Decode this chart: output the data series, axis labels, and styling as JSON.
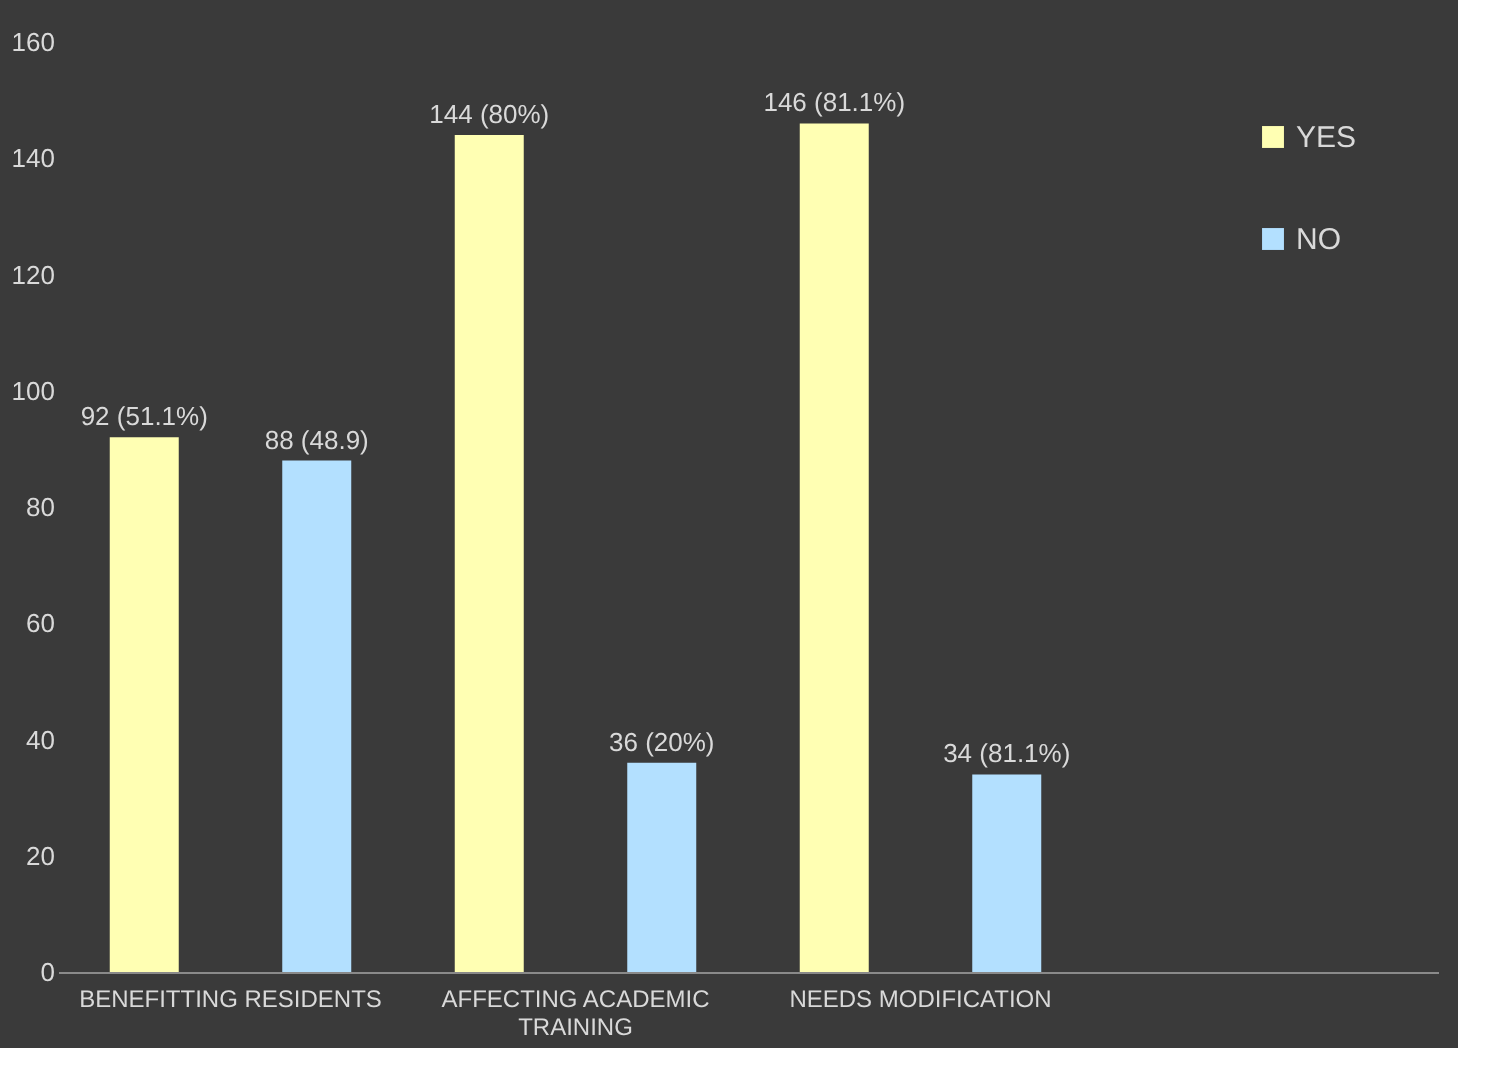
{
  "chart_data": {
    "type": "bar",
    "categories": [
      "BENEFITTING RESIDENTS",
      "AFFECTING ACADEMIC TRAINING",
      "NEEDS MODIFICATION",
      null
    ],
    "series": [
      {
        "name": "YES",
        "color": "#ffffb3",
        "values": [
          92,
          144,
          146,
          null
        ],
        "value_labels": [
          "92 (51.1%)",
          "144 (80%)",
          "146 (81.1%)",
          null
        ]
      },
      {
        "name": "NO",
        "color": "#b3e0ff",
        "values": [
          88,
          36,
          34,
          null
        ],
        "value_labels": [
          "88 (48.9)",
          "36 (20%)",
          "34 (81.1%)",
          null
        ]
      }
    ],
    "ylim": [
      0,
      160
    ],
    "yticks": [
      0,
      20,
      40,
      60,
      80,
      100,
      120,
      140,
      160
    ],
    "grid": false,
    "legend": "top right"
  }
}
